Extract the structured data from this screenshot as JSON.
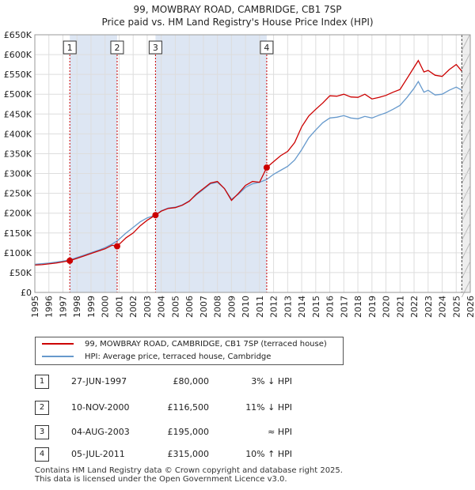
{
  "header": {
    "title": "99, MOWBRAY ROAD, CAMBRIDGE, CB1 7SP",
    "subtitle": "Price paid vs. HM Land Registry's House Price Index (HPI)"
  },
  "chart_data": {
    "type": "line",
    "xlim": [
      1995,
      2026
    ],
    "ylim": [
      0,
      650000
    ],
    "y_ticks": [
      {
        "value": 0,
        "label": "£0"
      },
      {
        "value": 50000,
        "label": "£50K"
      },
      {
        "value": 100000,
        "label": "£100K"
      },
      {
        "value": 150000,
        "label": "£150K"
      },
      {
        "value": 200000,
        "label": "£200K"
      },
      {
        "value": 250000,
        "label": "£250K"
      },
      {
        "value": 300000,
        "label": "£300K"
      },
      {
        "value": 350000,
        "label": "£350K"
      },
      {
        "value": 400000,
        "label": "£400K"
      },
      {
        "value": 450000,
        "label": "£450K"
      },
      {
        "value": 500000,
        "label": "£500K"
      },
      {
        "value": 550000,
        "label": "£550K"
      },
      {
        "value": 600000,
        "label": "£600K"
      },
      {
        "value": 650000,
        "label": "£650K"
      }
    ],
    "x_ticks": [
      "1995",
      "1996",
      "1997",
      "1998",
      "1999",
      "2000",
      "2001",
      "2002",
      "2003",
      "2004",
      "2005",
      "2006",
      "2007",
      "2008",
      "2009",
      "2010",
      "2011",
      "2012",
      "2013",
      "2014",
      "2015",
      "2016",
      "2017",
      "2018",
      "2019",
      "2020",
      "2021",
      "2022",
      "2023",
      "2024",
      "2025",
      "2026"
    ],
    "shaded_ranges": [
      [
        1997.49,
        2000.86
      ],
      [
        2003.59,
        2011.51
      ]
    ],
    "series": [
      {
        "name": "99, MOWBRAY ROAD, CAMBRIDGE, CB1 7SP (terraced house)",
        "color": "#cc0000",
        "points": [
          [
            1995.0,
            69000
          ],
          [
            1995.5,
            70000
          ],
          [
            1996.0,
            72000
          ],
          [
            1996.5,
            74000
          ],
          [
            1997.0,
            77000
          ],
          [
            1997.49,
            80000
          ],
          [
            1998.0,
            86000
          ],
          [
            1998.5,
            92000
          ],
          [
            1999.0,
            98000
          ],
          [
            1999.5,
            104000
          ],
          [
            2000.0,
            110000
          ],
          [
            2000.5,
            119000
          ],
          [
            2000.86,
            116500
          ],
          [
            2001.5,
            138000
          ],
          [
            2002.0,
            150000
          ],
          [
            2002.5,
            168000
          ],
          [
            2003.0,
            182000
          ],
          [
            2003.59,
            195000
          ],
          [
            2004.0,
            205000
          ],
          [
            2004.5,
            212000
          ],
          [
            2005.0,
            214000
          ],
          [
            2005.5,
            220000
          ],
          [
            2006.0,
            230000
          ],
          [
            2006.5,
            248000
          ],
          [
            2007.0,
            262000
          ],
          [
            2007.5,
            276000
          ],
          [
            2008.0,
            280000
          ],
          [
            2008.5,
            262000
          ],
          [
            2009.0,
            232000
          ],
          [
            2009.5,
            250000
          ],
          [
            2010.0,
            270000
          ],
          [
            2010.5,
            280000
          ],
          [
            2011.0,
            278000
          ],
          [
            2011.51,
            315000
          ],
          [
            2012.0,
            330000
          ],
          [
            2012.5,
            345000
          ],
          [
            2013.0,
            356000
          ],
          [
            2013.5,
            378000
          ],
          [
            2014.0,
            418000
          ],
          [
            2014.5,
            445000
          ],
          [
            2015.0,
            462000
          ],
          [
            2015.5,
            478000
          ],
          [
            2016.0,
            496000
          ],
          [
            2016.5,
            495000
          ],
          [
            2017.0,
            500000
          ],
          [
            2017.5,
            493000
          ],
          [
            2018.0,
            492000
          ],
          [
            2018.5,
            500000
          ],
          [
            2019.0,
            488000
          ],
          [
            2019.5,
            492000
          ],
          [
            2020.0,
            497000
          ],
          [
            2020.5,
            505000
          ],
          [
            2021.0,
            512000
          ],
          [
            2021.5,
            540000
          ],
          [
            2022.0,
            568000
          ],
          [
            2022.3,
            585000
          ],
          [
            2022.7,
            556000
          ],
          [
            2023.0,
            560000
          ],
          [
            2023.5,
            548000
          ],
          [
            2024.0,
            545000
          ],
          [
            2024.5,
            562000
          ],
          [
            2025.0,
            575000
          ],
          [
            2025.4,
            558000
          ]
        ]
      },
      {
        "name": "HPI: Average price, terraced house, Cambridge",
        "color": "#6699cc",
        "points": [
          [
            1995.0,
            71000
          ],
          [
            1995.5,
            72500
          ],
          [
            1996.0,
            74000
          ],
          [
            1996.5,
            76500
          ],
          [
            1997.0,
            79000
          ],
          [
            1997.49,
            82000
          ],
          [
            1998.0,
            88000
          ],
          [
            1998.5,
            94000
          ],
          [
            1999.0,
            100000
          ],
          [
            1999.5,
            106000
          ],
          [
            2000.0,
            113000
          ],
          [
            2000.5,
            122000
          ],
          [
            2000.86,
            130000
          ],
          [
            2001.5,
            150000
          ],
          [
            2002.0,
            164000
          ],
          [
            2002.5,
            178000
          ],
          [
            2003.0,
            188000
          ],
          [
            2003.59,
            195000
          ],
          [
            2004.0,
            206000
          ],
          [
            2004.5,
            213000
          ],
          [
            2005.0,
            215000
          ],
          [
            2005.5,
            221000
          ],
          [
            2006.0,
            231000
          ],
          [
            2006.5,
            246000
          ],
          [
            2007.0,
            260000
          ],
          [
            2007.5,
            274000
          ],
          [
            2008.0,
            278000
          ],
          [
            2008.5,
            262000
          ],
          [
            2009.0,
            235000
          ],
          [
            2009.5,
            248000
          ],
          [
            2010.0,
            265000
          ],
          [
            2010.5,
            274000
          ],
          [
            2011.0,
            278000
          ],
          [
            2011.51,
            285000
          ],
          [
            2012.0,
            298000
          ],
          [
            2012.5,
            308000
          ],
          [
            2013.0,
            318000
          ],
          [
            2013.5,
            334000
          ],
          [
            2014.0,
            360000
          ],
          [
            2014.5,
            390000
          ],
          [
            2015.0,
            410000
          ],
          [
            2015.5,
            428000
          ],
          [
            2016.0,
            440000
          ],
          [
            2016.5,
            442000
          ],
          [
            2017.0,
            446000
          ],
          [
            2017.5,
            440000
          ],
          [
            2018.0,
            438000
          ],
          [
            2018.5,
            444000
          ],
          [
            2019.0,
            440000
          ],
          [
            2019.5,
            447000
          ],
          [
            2020.0,
            453000
          ],
          [
            2020.5,
            462000
          ],
          [
            2021.0,
            472000
          ],
          [
            2021.5,
            492000
          ],
          [
            2022.0,
            515000
          ],
          [
            2022.3,
            532000
          ],
          [
            2022.7,
            505000
          ],
          [
            2023.0,
            510000
          ],
          [
            2023.5,
            498000
          ],
          [
            2024.0,
            500000
          ],
          [
            2024.5,
            510000
          ],
          [
            2025.0,
            518000
          ],
          [
            2025.4,
            510000
          ]
        ]
      }
    ],
    "sales": [
      {
        "label": "1",
        "x": 1997.49,
        "price": 80000
      },
      {
        "label": "2",
        "x": 2000.86,
        "price": 116500
      },
      {
        "label": "3",
        "x": 2003.59,
        "price": 195000
      },
      {
        "label": "4",
        "x": 2011.51,
        "price": 315000
      }
    ],
    "now_marker_x": 2025.4
  },
  "legend": {
    "price_paid": "99, MOWBRAY ROAD, CAMBRIDGE, CB1 7SP (terraced house)",
    "hpi": "HPI: Average price, terraced house, Cambridge"
  },
  "sales_table": [
    {
      "num": "1",
      "date": "27-JUN-1997",
      "price": "£80,000",
      "hpi": "3% ↓ HPI"
    },
    {
      "num": "2",
      "date": "10-NOV-2000",
      "price": "£116,500",
      "hpi": "11% ↓ HPI"
    },
    {
      "num": "3",
      "date": "04-AUG-2003",
      "price": "£195,000",
      "hpi": "≈ HPI"
    },
    {
      "num": "4",
      "date": "05-JUL-2011",
      "price": "£315,000",
      "hpi": "10% ↑ HPI"
    }
  ],
  "footer": {
    "line1": "Contains HM Land Registry data © Crown copyright and database right 2025.",
    "line2": "This data is licensed under the Open Government Licence v3.0."
  }
}
